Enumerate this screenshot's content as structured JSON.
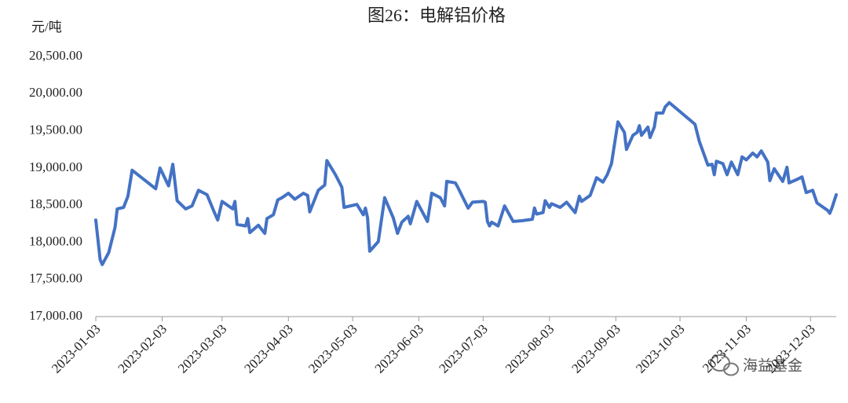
{
  "chart_data": {
    "type": "line",
    "title": "图26：电解铝价格",
    "y_unit": "元/吨",
    "watermark": "海益基金",
    "color": "#4472c4",
    "x": [
      "2023-01-03",
      "2023-01-05",
      "2023-01-06",
      "2023-01-09",
      "2023-01-12",
      "2023-01-13",
      "2023-01-16",
      "2023-01-18",
      "2023-01-20",
      "2023-01-31",
      "2023-02-02",
      "2023-02-06",
      "2023-02-08",
      "2023-02-10",
      "2023-02-14",
      "2023-02-17",
      "2023-02-20",
      "2023-02-24",
      "2023-02-27",
      "2023-03-01",
      "2023-03-03",
      "2023-03-08",
      "2023-03-09",
      "2023-03-10",
      "2023-03-14",
      "2023-03-15",
      "2023-03-16",
      "2023-03-20",
      "2023-03-23",
      "2023-03-24",
      "2023-03-27",
      "2023-03-29",
      "2023-03-31",
      "2023-04-03",
      "2023-04-06",
      "2023-04-10",
      "2023-04-12",
      "2023-04-13",
      "2023-04-17",
      "2023-04-20",
      "2023-04-21",
      "2023-04-25",
      "2023-04-28",
      "2023-04-29",
      "2023-05-05",
      "2023-05-08",
      "2023-05-09",
      "2023-05-10",
      "2023-05-11",
      "2023-05-15",
      "2023-05-18",
      "2023-05-22",
      "2023-05-24",
      "2023-05-26",
      "2023-05-29",
      "2023-05-30",
      "2023-06-02",
      "2023-06-07",
      "2023-06-09",
      "2023-06-13",
      "2023-06-15",
      "2023-06-16",
      "2023-06-20",
      "2023-06-21",
      "2023-06-26",
      "2023-06-28",
      "2023-07-03",
      "2023-07-04",
      "2023-07-05",
      "2023-07-06",
      "2023-07-07",
      "2023-07-10",
      "2023-07-13",
      "2023-07-17",
      "2023-07-21",
      "2023-07-26",
      "2023-07-27",
      "2023-07-28",
      "2023-07-31",
      "2023-08-01",
      "2023-08-03",
      "2023-08-04",
      "2023-08-08",
      "2023-08-11",
      "2023-08-15",
      "2023-08-17",
      "2023-08-18",
      "2023-08-22",
      "2023-08-25",
      "2023-08-28",
      "2023-08-30",
      "2023-09-01",
      "2023-09-04",
      "2023-09-07",
      "2023-09-08",
      "2023-09-11",
      "2023-09-13",
      "2023-09-14",
      "2023-09-15",
      "2023-09-18",
      "2023-09-19",
      "2023-09-21",
      "2023-09-22",
      "2023-09-25",
      "2023-09-26",
      "2023-09-28",
      "2023-10-10",
      "2023-10-12",
      "2023-10-16",
      "2023-10-18",
      "2023-10-19",
      "2023-10-20",
      "2023-10-23",
      "2023-10-25",
      "2023-10-27",
      "2023-10-30",
      "2023-11-01",
      "2023-11-03",
      "2023-11-06",
      "2023-11-08",
      "2023-11-10",
      "2023-11-13",
      "2023-11-14",
      "2023-11-16",
      "2023-11-20",
      "2023-11-22",
      "2023-11-23",
      "2023-11-27",
      "2023-11-29",
      "2023-12-01",
      "2023-12-04",
      "2023-12-06",
      "2023-12-08",
      "2023-12-11",
      "2023-12-12",
      "2023-12-13",
      "2023-12-15"
    ],
    "values": [
      18300,
      17770,
      17700,
      17860,
      18200,
      18450,
      18470,
      18620,
      18970,
      18720,
      19000,
      18760,
      19050,
      18560,
      18450,
      18490,
      18700,
      18640,
      18430,
      18300,
      18550,
      18450,
      18550,
      18240,
      18220,
      18320,
      18130,
      18230,
      18120,
      18320,
      18370,
      18570,
      18600,
      18660,
      18580,
      18660,
      18630,
      18410,
      18700,
      18770,
      19100,
      18910,
      18740,
      18470,
      18510,
      18370,
      18460,
      18330,
      17880,
      18010,
      18600,
      18330,
      18120,
      18270,
      18350,
      18250,
      18550,
      18280,
      18660,
      18600,
      18490,
      18820,
      18800,
      18750,
      18460,
      18540,
      18550,
      18540,
      18280,
      18220,
      18270,
      18220,
      18490,
      18280,
      18290,
      18310,
      18460,
      18380,
      18400,
      18560,
      18470,
      18520,
      18470,
      18540,
      18400,
      18620,
      18550,
      18630,
      18870,
      18810,
      18910,
      19060,
      19620,
      19480,
      19250,
      19440,
      19480,
      19570,
      19440,
      19550,
      19410,
      19550,
      19740,
      19740,
      19820,
      19880,
      19590,
      19360,
      19040,
      19050,
      18910,
      19090,
      19060,
      18910,
      19080,
      18910,
      19150,
      19110,
      19200,
      19150,
      19230,
      19080,
      18830,
      18990,
      18820,
      19010,
      18800,
      18850,
      18880,
      18670,
      18700,
      18530,
      18490,
      18430,
      18390,
      18460,
      18640
    ],
    "xlim": [
      "2023-01-03",
      "2023-12-15"
    ],
    "xticks": [
      "2023-01-03",
      "2023-02-03",
      "2023-03-03",
      "2023-04-03",
      "2023-05-03",
      "2023-06-03",
      "2023-07-03",
      "2023-08-03",
      "2023-09-03",
      "2023-10-03",
      "2023-11-03",
      "2023-12-03"
    ],
    "ylim": [
      17000,
      20500
    ],
    "yticks": [
      {
        "value": 17000,
        "label": "17,000.00"
      },
      {
        "value": 17500,
        "label": "17,500.00"
      },
      {
        "value": 18000,
        "label": "18,000.00"
      },
      {
        "value": 18500,
        "label": "18,500.00"
      },
      {
        "value": 19000,
        "label": "19,000.00"
      },
      {
        "value": 19500,
        "label": "19,500.00"
      },
      {
        "value": 20000,
        "label": "20,000.00"
      },
      {
        "value": 20500,
        "label": "20,500.00"
      }
    ],
    "grid": false
  }
}
